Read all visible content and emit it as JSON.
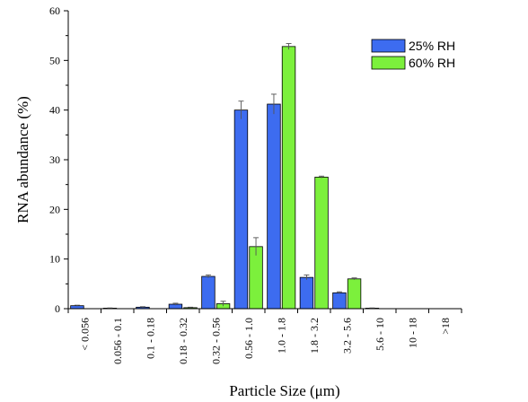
{
  "chart_data": {
    "type": "bar",
    "title": "",
    "xlabel": "Particle Size (μm)",
    "ylabel": "RNA abundance (%)",
    "ylim": [
      0,
      60
    ],
    "yticks": [
      0,
      10,
      20,
      30,
      40,
      50,
      60
    ],
    "categories": [
      "< 0.056",
      "0.056 - 0.1",
      "0.1 - 0.18",
      "0.18 - 0.32",
      "0.32 - 0.56",
      "0.56 - 1.0",
      "1.0 - 1.8",
      "1.8 - 3.2",
      "3.2 - 5.6",
      "5.6 - 10",
      "10 - 18",
      ">18"
    ],
    "series": [
      {
        "name": "25% RH",
        "color": "#3d6cf0",
        "values": [
          0.6,
          0.1,
          0.3,
          0.9,
          6.5,
          40.0,
          41.2,
          6.3,
          3.2,
          0.1,
          0,
          0
        ],
        "errors": [
          0.1,
          0.05,
          0.1,
          0.2,
          0.3,
          1.8,
          2.0,
          0.5,
          0.2,
          0.05,
          0,
          0
        ]
      },
      {
        "name": "60% RH",
        "color": "#7cf03c",
        "values": [
          0,
          0,
          0,
          0.2,
          1.0,
          12.5,
          52.8,
          26.5,
          6.0,
          0,
          0,
          0
        ],
        "errors": [
          0,
          0,
          0,
          0.1,
          0.5,
          1.8,
          0.6,
          0.2,
          0.2,
          0,
          0,
          0
        ]
      }
    ],
    "legend_position": "top-right",
    "grid": false
  }
}
